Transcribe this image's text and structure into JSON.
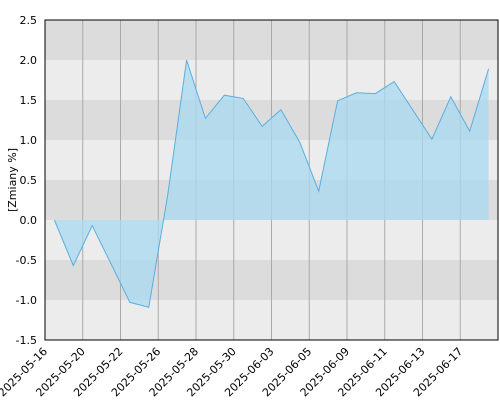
{
  "chart_data": {
    "type": "area",
    "y_label": "[Zmiany %]",
    "categories": [
      "2025-05-16",
      null,
      "2025-05-20",
      null,
      "2025-05-22",
      null,
      "2025-05-26",
      null,
      "2025-05-28",
      null,
      "2025-05-30",
      null,
      "2025-06-03",
      null,
      "2025-06-05",
      null,
      "2025-06-09",
      null,
      "2025-06-11",
      null,
      "2025-06-13",
      null,
      "2025-06-17",
      null
    ],
    "values": [
      0,
      -0.57,
      -0.07,
      -0.55,
      -1.03,
      -1.09,
      0.31,
      2.0,
      1.27,
      1.56,
      1.52,
      1.17,
      1.38,
      0.97,
      0.36,
      1.49,
      1.59,
      1.58,
      1.73,
      1.37,
      1.01,
      1.54,
      1.11,
      1.89
    ],
    "color": "#5aafe0",
    "fill": "#a8daf0",
    "ylim": [
      -1.5,
      2.5
    ],
    "yticks": [
      {
        "value": -1.5,
        "label": "-1.5"
      },
      {
        "value": -1.0,
        "label": "-1.0"
      },
      {
        "value": -0.5,
        "label": "-0.5"
      },
      {
        "value": 0,
        "label": "0.0"
      },
      {
        "value": 0.5,
        "label": "0.5"
      },
      {
        "value": 1.0,
        "label": "1.0"
      },
      {
        "value": 1.5,
        "label": "1.5"
      },
      {
        "value": 2.0,
        "label": "2.0"
      },
      {
        "value": 2.5,
        "label": "2.5"
      }
    ],
    "grid": true
  }
}
